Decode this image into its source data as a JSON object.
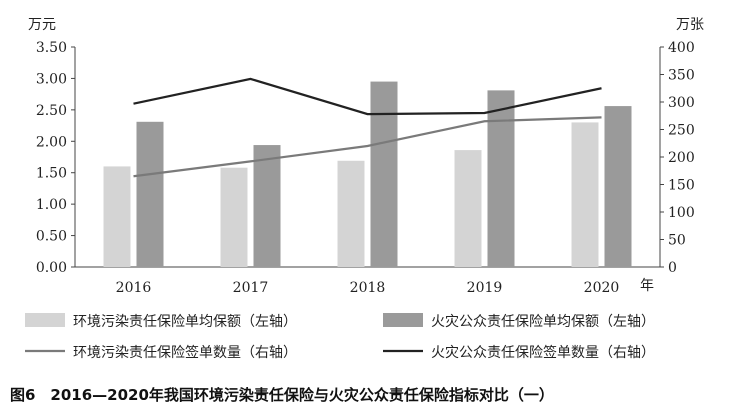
{
  "caption": "图6　2016—2020年我国环境污染责任保险与火灾公众责任保险指标对比（一）",
  "chart_data": {
    "type": "bar",
    "categories": [
      "2016",
      "2017",
      "2018",
      "2019",
      "2020"
    ],
    "x_unit": "年",
    "left_axis": {
      "unit": "万元",
      "range": [
        0,
        3.5
      ],
      "ticks": [
        "0.00",
        "0.50",
        "1.00",
        "1.50",
        "2.00",
        "2.50",
        "3.00",
        "3.50"
      ]
    },
    "right_axis": {
      "unit": "万张",
      "range": [
        0,
        400
      ],
      "ticks": [
        "0",
        "50",
        "100",
        "150",
        "200",
        "250",
        "300",
        "350",
        "400"
      ]
    },
    "series": [
      {
        "name": "环境污染责任保险单均保额（左轴）",
        "type": "bar",
        "axis": "left",
        "color": "#d4d4d4",
        "values": [
          1.6,
          1.58,
          1.69,
          1.86,
          2.3
        ]
      },
      {
        "name": "火灾公众责任保险单均保额（左轴）",
        "type": "bar",
        "axis": "left",
        "color": "#9a9a9a",
        "values": [
          2.31,
          1.94,
          2.95,
          2.81,
          2.56
        ]
      },
      {
        "name": "环境污染责任保险签单数量（右轴）",
        "type": "line",
        "axis": "right",
        "color": "#7a7a7a",
        "values": [
          165,
          192,
          220,
          265,
          272
        ]
      },
      {
        "name": "火灾公众责任保险签单数量（右轴）",
        "type": "line",
        "axis": "right",
        "color": "#222222",
        "values": [
          297,
          342,
          278,
          280,
          325
        ]
      }
    ],
    "grid": false,
    "legend_position": "bottom"
  }
}
